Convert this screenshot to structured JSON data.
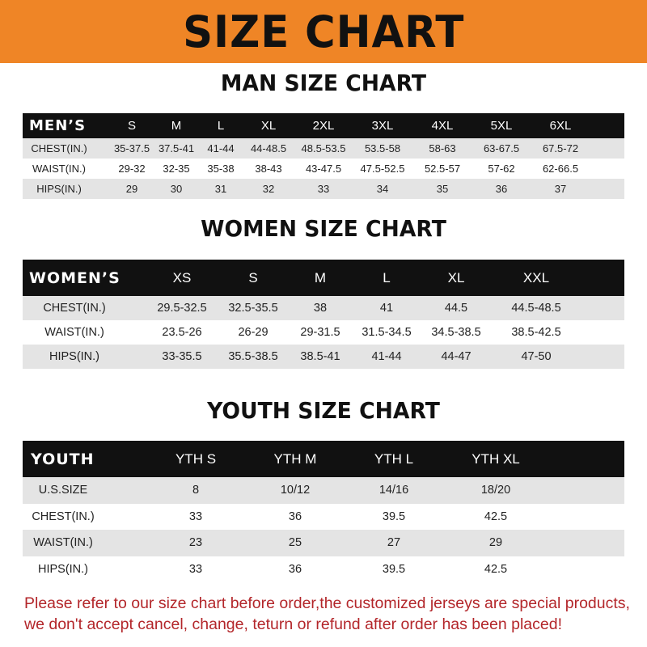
{
  "banner_title": "SIZE CHART",
  "accent_color": "#ef8526",
  "men": {
    "title": "MAN SIZE CHART",
    "header": [
      "MEN’S",
      "S",
      "M",
      "L",
      "XL",
      "2XL",
      "3XL",
      "4XL",
      "5XL",
      "6XL"
    ],
    "rows": [
      [
        "CHEST(IN.)",
        "35-37.5",
        "37.5-41",
        "41-44",
        "44-48.5",
        "48.5-53.5",
        "53.5-58",
        "58-63",
        "63-67.5",
        "67.5-72"
      ],
      [
        "WAIST(IN.)",
        "29-32",
        "32-35",
        "35-38",
        "38-43",
        "43-47.5",
        "47.5-52.5",
        "52.5-57",
        "57-62",
        "62-66.5"
      ],
      [
        "HIPS(IN.)",
        "29",
        "30",
        "31",
        "32",
        "33",
        "34",
        "35",
        "36",
        "37"
      ]
    ]
  },
  "women": {
    "title": "WOMEN SIZE CHART",
    "header": [
      "WOMEN’S",
      "XS",
      "S",
      "M",
      "L",
      "XL",
      "XXL"
    ],
    "rows": [
      [
        "CHEST(IN.)",
        "29.5-32.5",
        "32.5-35.5",
        "38",
        "41",
        "44.5",
        "44.5-48.5"
      ],
      [
        "WAIST(IN.)",
        "23.5-26",
        "26-29",
        "29-31.5",
        "31.5-34.5",
        "34.5-38.5",
        "38.5-42.5"
      ],
      [
        "HIPS(IN.)",
        "33-35.5",
        "35.5-38.5",
        "38.5-41",
        "41-44",
        "44-47",
        "47-50"
      ]
    ]
  },
  "youth": {
    "title": "YOUTH SIZE CHART",
    "header": [
      "YOUTH",
      "YTH S",
      "YTH M",
      "YTH L",
      "YTH XL"
    ],
    "rows": [
      [
        "U.S.SIZE",
        "8",
        "10/12",
        "14/16",
        "18/20"
      ],
      [
        "CHEST(IN.)",
        "33",
        "36",
        "39.5",
        "42.5"
      ],
      [
        "WAIST(IN.)",
        "23",
        "25",
        "27",
        "29"
      ],
      [
        "HIPS(IN.)",
        "33",
        "36",
        "39.5",
        "42.5"
      ]
    ]
  },
  "footer": {
    "line1": "Please refer to our size chart before order,the customized jerseys are special products,",
    "line2": "we don't accept cancel, change, teturn or refund after order has been placed!"
  }
}
